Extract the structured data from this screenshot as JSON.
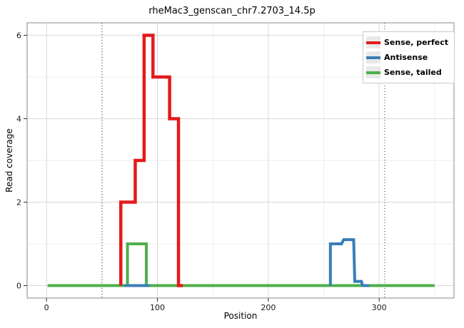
{
  "chart_data": {
    "type": "line",
    "title": "rheMac3_genscan_chr7.2703_14.5p",
    "xlabel": "Position",
    "ylabel": "Read coverage",
    "xlim": [
      -17.5,
      367.5
    ],
    "ylim": [
      -0.3,
      6.3
    ],
    "x_ticks": [
      0,
      100,
      200,
      300
    ],
    "y_ticks": [
      0,
      2,
      4,
      6
    ],
    "x_minor": [
      50,
      150,
      250,
      350
    ],
    "y_minor": [
      1,
      3,
      5
    ],
    "vlines": [
      50,
      305
    ],
    "grid": "on",
    "legend_position": "top-right-inside",
    "series": [
      {
        "name": "Sense, perfect",
        "color": "#E41A1C",
        "z": 3,
        "width": 4.5,
        "segments": [
          [
            [
              67,
              0
            ],
            [
              67,
              2
            ],
            [
              80,
              2
            ],
            [
              80,
              3
            ],
            [
              88,
              3
            ],
            [
              88,
              6
            ],
            [
              96,
              6
            ],
            [
              96,
              5
            ],
            [
              111,
              5
            ],
            [
              111,
              4
            ],
            [
              119,
              4
            ],
            [
              119,
              0
            ],
            [
              123,
              0
            ]
          ]
        ]
      },
      {
        "name": "Antisense",
        "color": "#377EB8",
        "z": 2,
        "width": 4,
        "segments": [
          [
            [
              70,
              0
            ],
            [
              93,
              0
            ]
          ],
          [
            [
              256,
              0
            ],
            [
              256,
              1
            ],
            [
              266,
              1
            ],
            [
              268,
              1.1
            ],
            [
              277,
              1.1
            ],
            [
              278,
              0.1
            ],
            [
              284,
              0.1
            ],
            [
              285,
              0
            ],
            [
              291,
              0
            ]
          ]
        ]
      },
      {
        "name": "Sense, tailed",
        "color": "#4DAF4A",
        "z": 1,
        "width": 4,
        "segments": [
          [
            [
              1,
              0
            ],
            [
              73,
              0
            ],
            [
              73,
              1
            ],
            [
              90,
              1
            ],
            [
              90,
              0
            ],
            [
              350,
              0
            ]
          ]
        ]
      }
    ],
    "style": {
      "panel_border": "#8a8a8a",
      "grid_major": "#d8d8d8",
      "grid_minor": "#eeeeee",
      "vline_color": "#333333",
      "tick_color": "#2b2b2b",
      "tick_label_color": "#1a1a1a"
    }
  }
}
